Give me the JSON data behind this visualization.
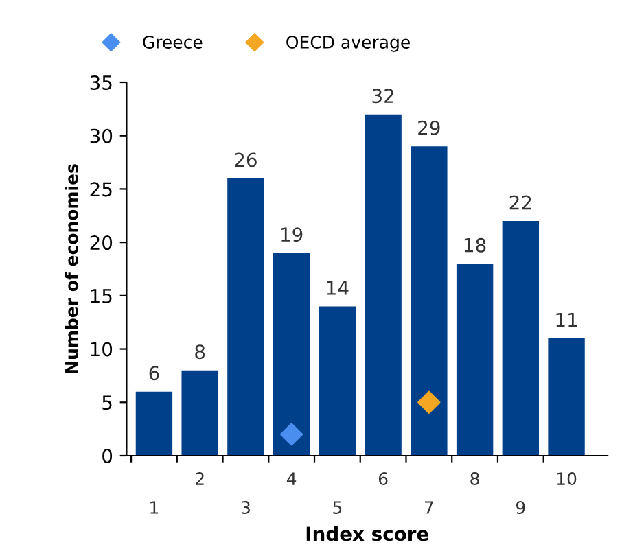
{
  "chart_data": {
    "type": "bar",
    "xlabel": "Index score",
    "ylabel": "Number of economies",
    "categories": [
      "1",
      "2",
      "3",
      "4",
      "5",
      "6",
      "7",
      "8",
      "9",
      "10"
    ],
    "series": [
      {
        "color": "#003f8a",
        "values": [
          6,
          8,
          26,
          19,
          14,
          32,
          29,
          18,
          22,
          11
        ],
        "value_labels": [
          "6",
          "8",
          "26",
          "19",
          "14",
          "32",
          "29",
          "18",
          "22",
          "11"
        ]
      },
      {
        "type": "scatter",
        "name": "Greece",
        "color": "#4a8ff0",
        "x": [
          "4"
        ],
        "values": [
          2
        ]
      },
      {
        "type": "scatter",
        "name": "OECD average",
        "color": "#f5a623",
        "x": [
          "7"
        ],
        "values": [
          5
        ]
      }
    ],
    "ylim": [
      0,
      35
    ],
    "yticks": [
      0,
      5,
      10,
      15,
      20,
      25,
      30,
      35
    ],
    "marker": "diamond",
    "grid": false,
    "legend": "top left"
  }
}
